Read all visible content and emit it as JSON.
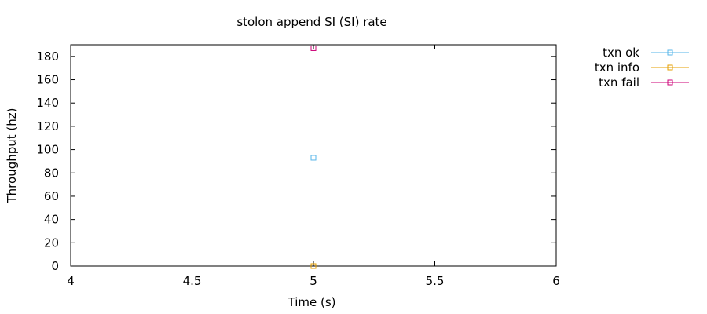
{
  "chart_data": {
    "type": "scatter",
    "title": "stolon append SI (SI)  rate",
    "xlabel": "Time (s)",
    "ylabel": "Throughput (hz)",
    "xlim": [
      4,
      6
    ],
    "ylim": [
      0,
      190
    ],
    "xticks": [
      4,
      4.5,
      5,
      5.5,
      6
    ],
    "xtick_labels": [
      "4",
      "4.5",
      "5",
      "5.5",
      "6"
    ],
    "yticks": [
      0,
      20,
      40,
      60,
      80,
      100,
      120,
      140,
      160,
      180
    ],
    "ytick_labels": [
      "0",
      "20",
      "40",
      "60",
      "80",
      "100",
      "120",
      "140",
      "160",
      "180"
    ],
    "grid": false,
    "legend_position": "outside top-right",
    "series": [
      {
        "name": "txn ok",
        "color": "#56b4e9",
        "marker": "square",
        "x": [
          5
        ],
        "y": [
          93
        ]
      },
      {
        "name": "txn info",
        "color": "#e69f00",
        "marker": "square",
        "x": [
          5
        ],
        "y": [
          0
        ]
      },
      {
        "name": "txn fail",
        "color": "#cc0077",
        "marker": "square",
        "x": [
          5
        ],
        "y": [
          187
        ]
      }
    ]
  }
}
